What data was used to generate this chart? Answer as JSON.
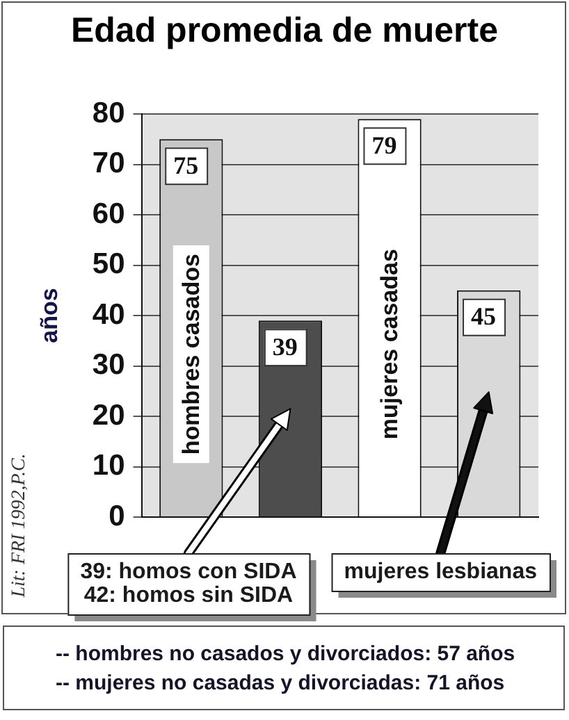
{
  "chart_data": {
    "type": "bar",
    "title": "Edad promedia de muerte",
    "ylabel": "años",
    "categories": [
      "hombres casados",
      null,
      "mujeres casadas",
      "mujeres lesbianas"
    ],
    "values": [
      75,
      39,
      79,
      45
    ],
    "colors": [
      "#c8c8c8",
      "#4d4d4d",
      "#ffffff",
      "#d9d9d9"
    ],
    "ylim": [
      0,
      80
    ],
    "yticks": [
      0,
      10,
      20,
      30,
      40,
      50,
      60,
      70,
      80
    ],
    "grid": "y",
    "legend": false,
    "data_labels": true,
    "annotations": [
      "39: homos con SIDA",
      "42: homos sin SIDA",
      "-- hombres no casados y divorciados: 57 años",
      "-- mujeres no casadas y divorciadas: 71 años",
      "Lit: FRI 1992,P.C."
    ]
  }
}
